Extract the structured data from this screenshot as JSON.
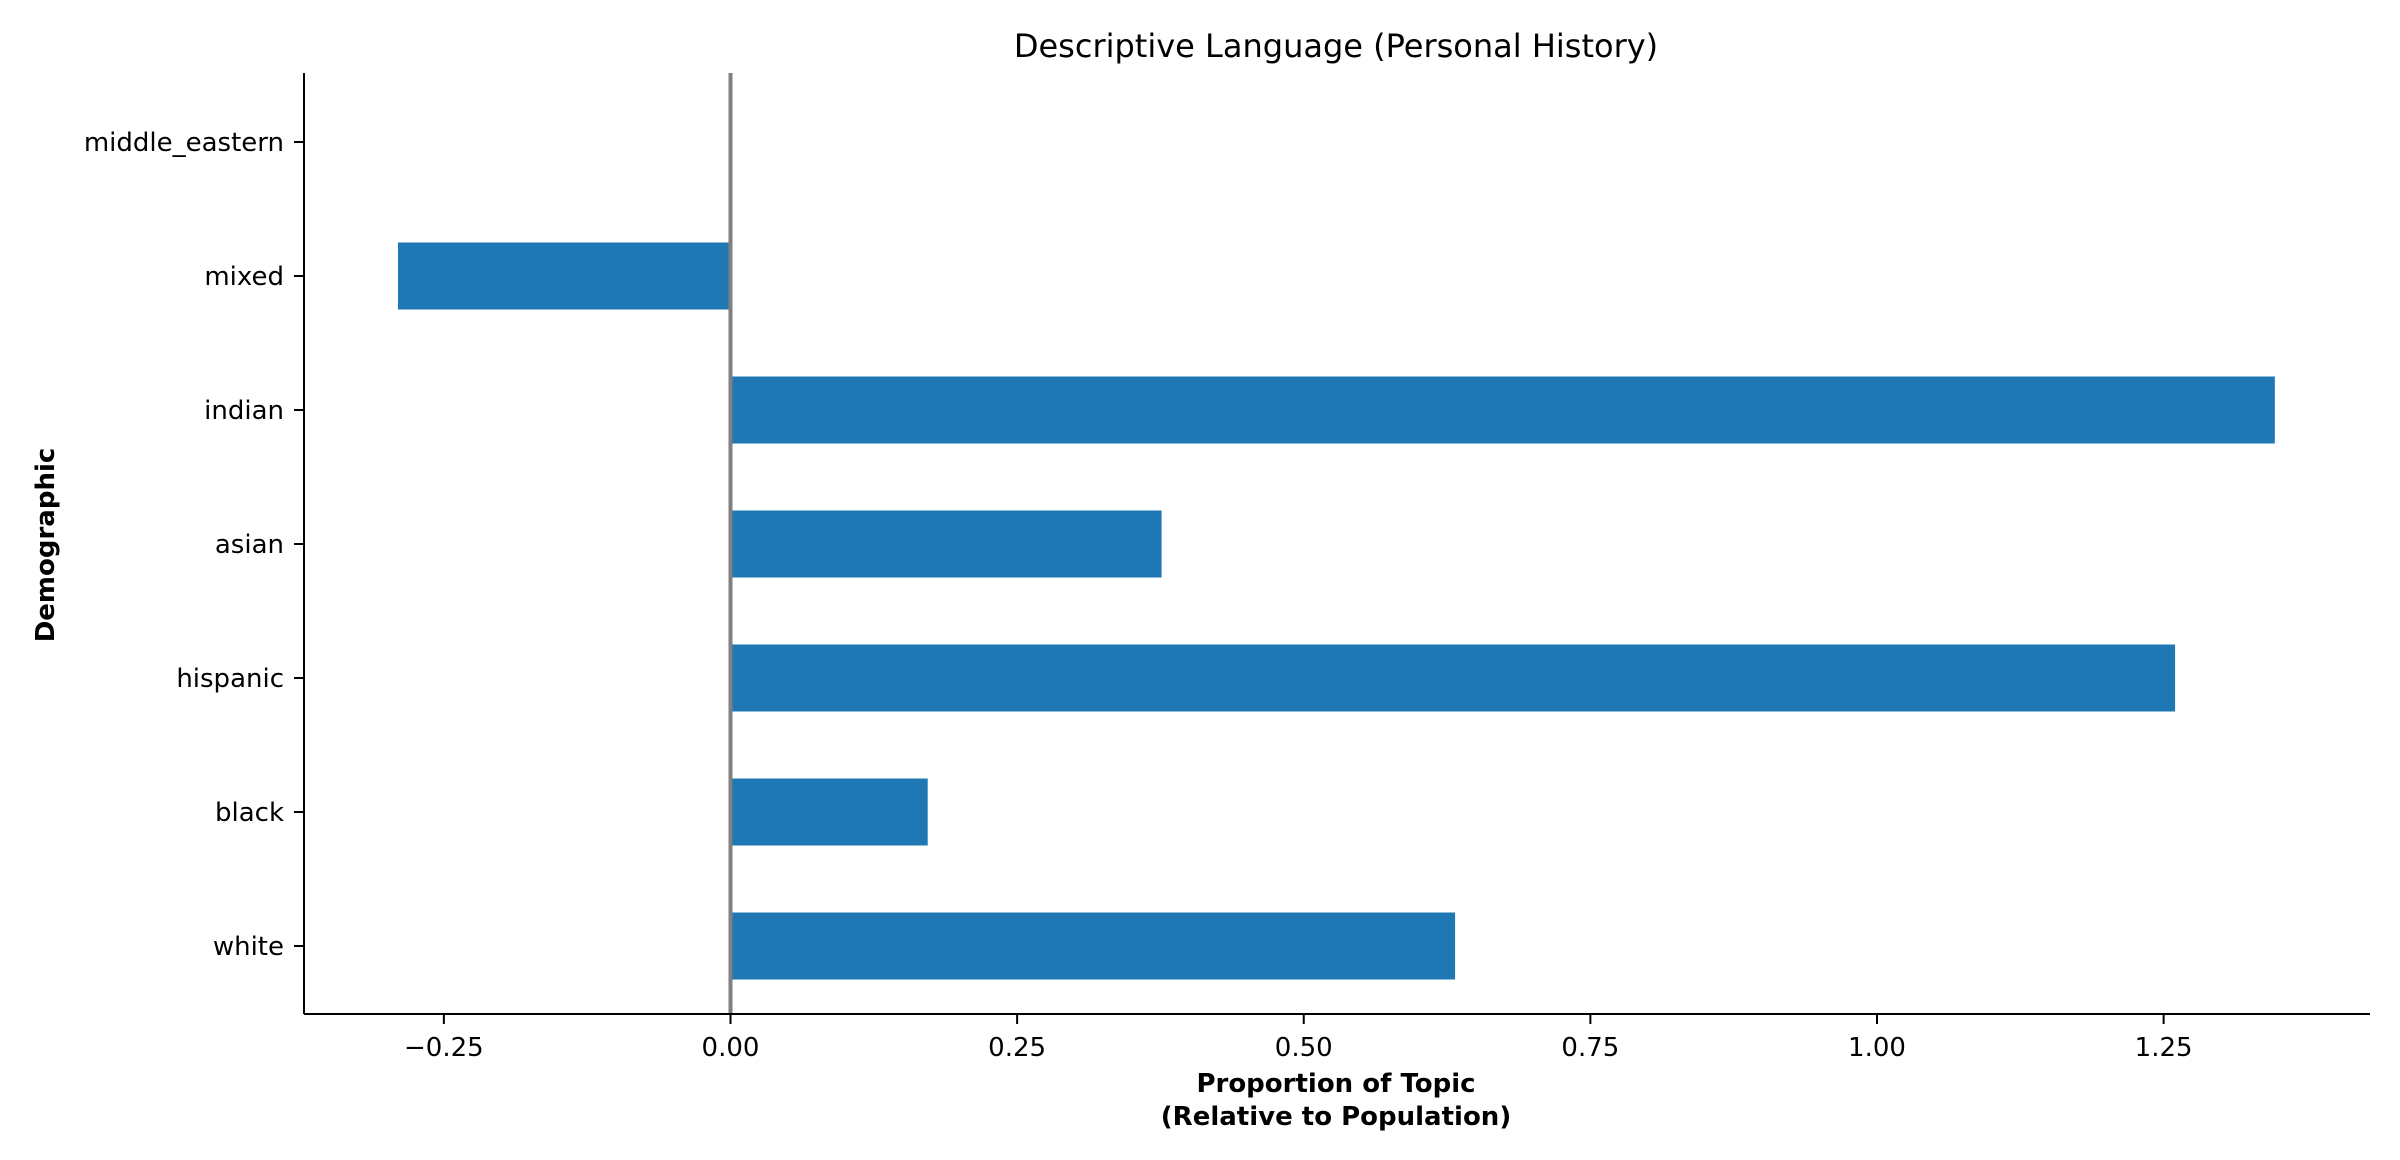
{
  "chart_data": {
    "type": "bar",
    "orientation": "horizontal",
    "title": "Descriptive Language (Personal History)",
    "xlabel_lines": [
      "Proportion of Topic",
      "(Relative to Population)"
    ],
    "ylabel": "Demographic",
    "categories": [
      "white",
      "black",
      "hispanic",
      "asian",
      "indian",
      "mixed",
      "middle_eastern"
    ],
    "values": [
      0.632,
      0.172,
      1.26,
      0.376,
      1.347,
      -0.29,
      0.0
    ],
    "xlim": [
      -0.372,
      1.43
    ],
    "xticks": [
      -0.25,
      0.0,
      0.25,
      0.5,
      0.75,
      1.0,
      1.25
    ],
    "xtick_labels": [
      "−0.25",
      "0.00",
      "0.25",
      "0.50",
      "0.75",
      "1.00",
      "1.25"
    ],
    "bar_color": "#1f77b4",
    "zero_line_color": "#808080",
    "grid": false,
    "legend": "none"
  }
}
